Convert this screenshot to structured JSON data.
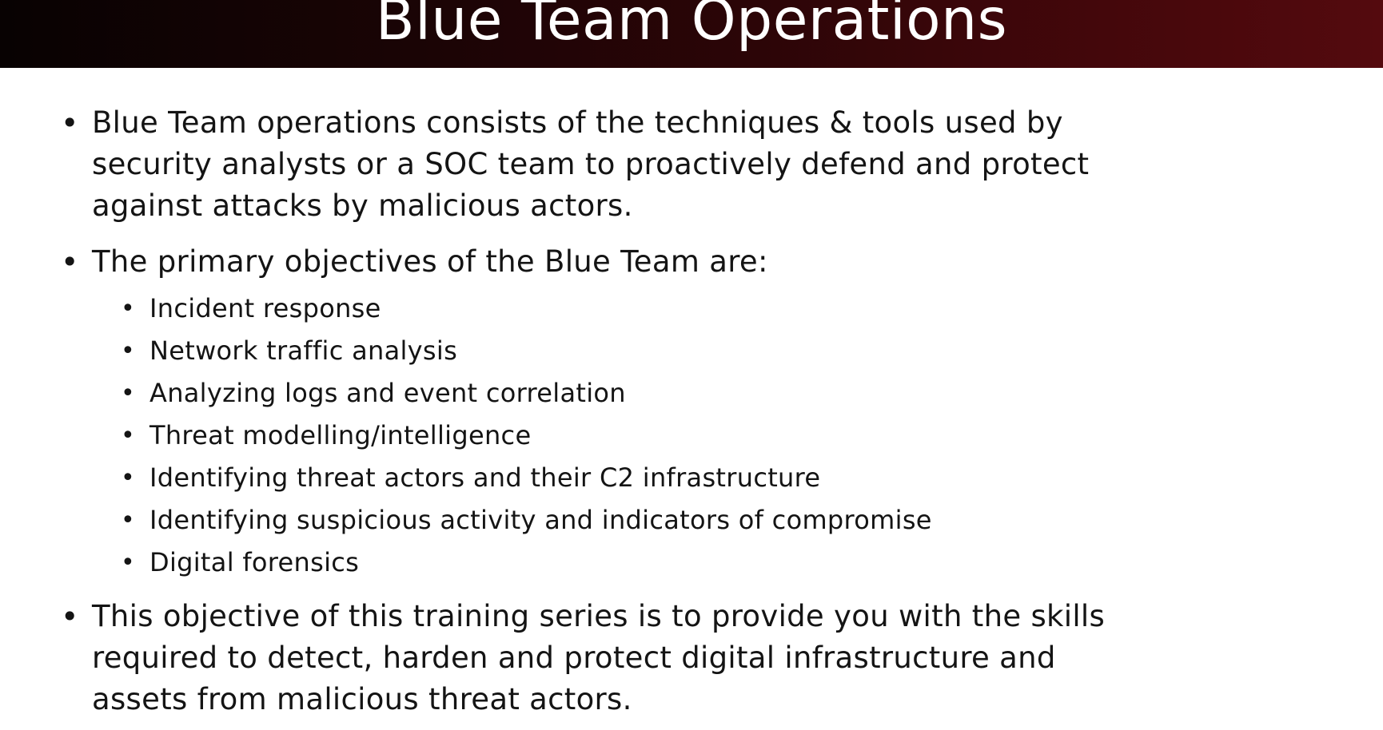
{
  "slide": {
    "title": "Blue Team Operations",
    "bullets": [
      {
        "text": "Blue Team operations consists of the techniques & tools used by\nsecurity analysts or a SOC team to proactively defend and protect\nagainst attacks by malicious actors."
      },
      {
        "text": "The primary objectives of the Blue Team are:",
        "subitems": [
          "Incident response",
          "Network traffic analysis",
          "Analyzing logs and event correlation",
          "Threat modelling/intelligence",
          "Identifying threat actors and their C2 infrastructure",
          "Identifying suspicious activity and indicators of compromise",
          "Digital forensics"
        ]
      },
      {
        "text": "This objective of this training series is to provide you with the skills\nrequired to detect, harden and protect digital infrastructure and\nassets from malicious threat actors."
      }
    ],
    "bullet_glyph": "•",
    "colors": {
      "title_bar_dark": "#080202",
      "title_bar_red": "#540a0e",
      "title_text": "#ffffff",
      "body_text": "#141414",
      "background": "#ffffff"
    }
  }
}
